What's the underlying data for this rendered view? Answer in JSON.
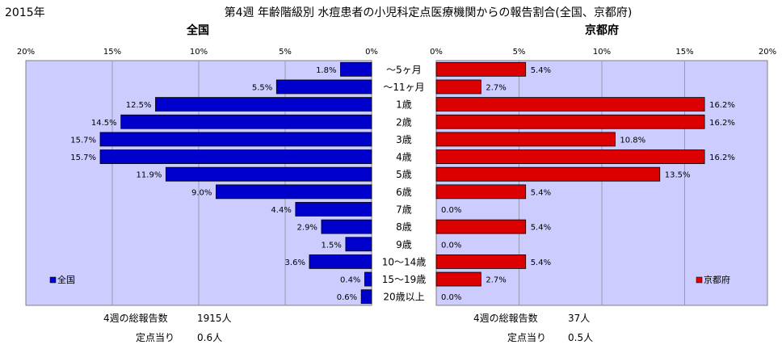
{
  "header": {
    "year": "2015年",
    "title": "第4週 年齢階級別 水痘患者の小児科定点医療機関からの報告割合(全国、京都府)"
  },
  "colors": {
    "plot_bg": "#ccccff",
    "national_bar": "#0000cc",
    "kyoto_bar": "#dd0000",
    "grid": "#9a9ab0"
  },
  "categories": [
    "～5ヶ月",
    "～11ヶ月",
    "1歳",
    "2歳",
    "3歳",
    "4歳",
    "5歳",
    "6歳",
    "7歳",
    "8歳",
    "9歳",
    "10～14歳",
    "15～19歳",
    "20歳以上"
  ],
  "chart_data": [
    {
      "type": "bar",
      "orientation": "horizontal-reversed",
      "title": "全国",
      "categories": [
        "～5ヶ月",
        "～11ヶ月",
        "1歳",
        "2歳",
        "3歳",
        "4歳",
        "5歳",
        "6歳",
        "7歳",
        "8歳",
        "9歳",
        "10～14歳",
        "15～19歳",
        "20歳以上"
      ],
      "series": [
        {
          "name": "全国",
          "values": [
            1.8,
            5.5,
            12.5,
            14.5,
            15.7,
            15.7,
            11.9,
            9.0,
            4.4,
            2.9,
            1.5,
            3.6,
            0.4,
            0.6
          ]
        }
      ],
      "value_labels": [
        "1.8%",
        "5.5%",
        "12.5%",
        "14.5%",
        "15.7%",
        "15.7%",
        "11.9%",
        "9.0%",
        "4.4%",
        "2.9%",
        "1.5%",
        "3.6%",
        "0.4%",
        "0.6%"
      ],
      "xlim": [
        0,
        20
      ],
      "ticks": [
        "20%",
        "15%",
        "10%",
        "5%",
        "0%"
      ],
      "tick_values": [
        20,
        15,
        10,
        5,
        0
      ],
      "grid": true,
      "legend": "bottom-left"
    },
    {
      "type": "bar",
      "orientation": "horizontal",
      "title": "京都府",
      "categories": [
        "～5ヶ月",
        "～11ヶ月",
        "1歳",
        "2歳",
        "3歳",
        "4歳",
        "5歳",
        "6歳",
        "7歳",
        "8歳",
        "9歳",
        "10～14歳",
        "15～19歳",
        "20歳以上"
      ],
      "series": [
        {
          "name": "京都府",
          "values": [
            5.4,
            2.7,
            16.2,
            16.2,
            10.8,
            16.2,
            13.5,
            5.4,
            0.0,
            5.4,
            0.0,
            5.4,
            2.7,
            0.0
          ]
        }
      ],
      "value_labels": [
        "5.4%",
        "2.7%",
        "16.2%",
        "16.2%",
        "10.8%",
        "16.2%",
        "13.5%",
        "5.4%",
        "0.0%",
        "5.4%",
        "0.0%",
        "5.4%",
        "2.7%",
        "0.0%"
      ],
      "xlim": [
        0,
        20
      ],
      "ticks": [
        "0%",
        "5%",
        "10%",
        "15%",
        "20%"
      ],
      "tick_values": [
        0,
        5,
        10,
        15,
        20
      ],
      "grid": true,
      "legend": "bottom-right"
    }
  ],
  "footer": {
    "national": {
      "total_label": "4週の総報告数",
      "total_value": "1915人",
      "per_label": "定点当り",
      "per_value": "0.6人"
    },
    "kyoto": {
      "total_label": "4週の総報告数",
      "total_value": "37人",
      "per_label": "定点当り",
      "per_value": "0.5人"
    }
  }
}
